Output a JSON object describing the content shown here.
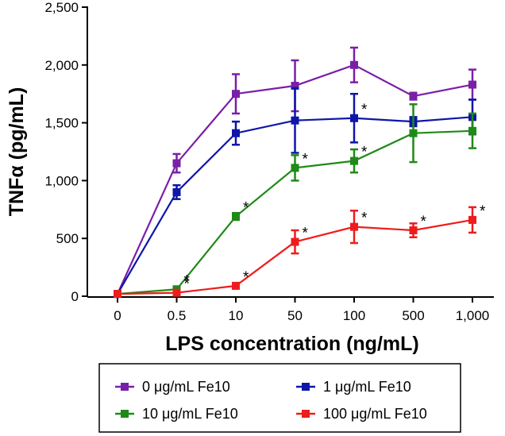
{
  "chart_data": {
    "type": "line",
    "title": "",
    "xlabel": "LPS concentration (ng/mL)",
    "ylabel": "TNFα (pg/mL)",
    "categories": [
      "0",
      "0.5",
      "10",
      "50",
      "100",
      "500",
      "1,000"
    ],
    "ylim": [
      0,
      2500
    ],
    "yticks": [
      0,
      500,
      1000,
      1500,
      2000,
      2500
    ],
    "ytick_labels": [
      "0",
      "500",
      "1,000",
      "1,500",
      "2,000",
      "2,500"
    ],
    "series": [
      {
        "name": "0 μg/mL Fe10",
        "color": "#7a1fa8",
        "values": [
          20,
          1150,
          1750,
          1820,
          2000,
          1730,
          1830
        ],
        "errors": [
          10,
          80,
          170,
          220,
          150,
          30,
          130
        ],
        "significant": [
          false,
          false,
          false,
          false,
          false,
          false,
          false
        ]
      },
      {
        "name": "1 μg/mL Fe10",
        "color": "#0d16a8",
        "values": [
          20,
          900,
          1410,
          1520,
          1540,
          1510,
          1550
        ],
        "errors": [
          10,
          60,
          100,
          280,
          210,
          40,
          150
        ],
        "significant": [
          false,
          false,
          false,
          false,
          true,
          false,
          false
        ]
      },
      {
        "name": "10 μg/mL Fe10",
        "color": "#1f8a17",
        "values": [
          20,
          60,
          690,
          1110,
          1170,
          1410,
          1430
        ],
        "errors": [
          10,
          10,
          30,
          110,
          100,
          250,
          150
        ],
        "significant": [
          false,
          true,
          true,
          true,
          true,
          false,
          false
        ]
      },
      {
        "name": "100 μg/mL Fe10",
        "color": "#ee1c1c",
        "values": [
          20,
          30,
          90,
          470,
          600,
          570,
          660
        ],
        "errors": [
          10,
          10,
          20,
          100,
          140,
          60,
          110
        ],
        "significant": [
          false,
          true,
          true,
          true,
          true,
          true,
          true
        ]
      }
    ],
    "significance_marker": "*",
    "legend": {
      "position": "bottom",
      "entries": [
        "0 μg/mL Fe10",
        "1 μg/mL Fe10",
        "10 μg/mL Fe10",
        "100 μg/mL Fe10"
      ]
    }
  }
}
